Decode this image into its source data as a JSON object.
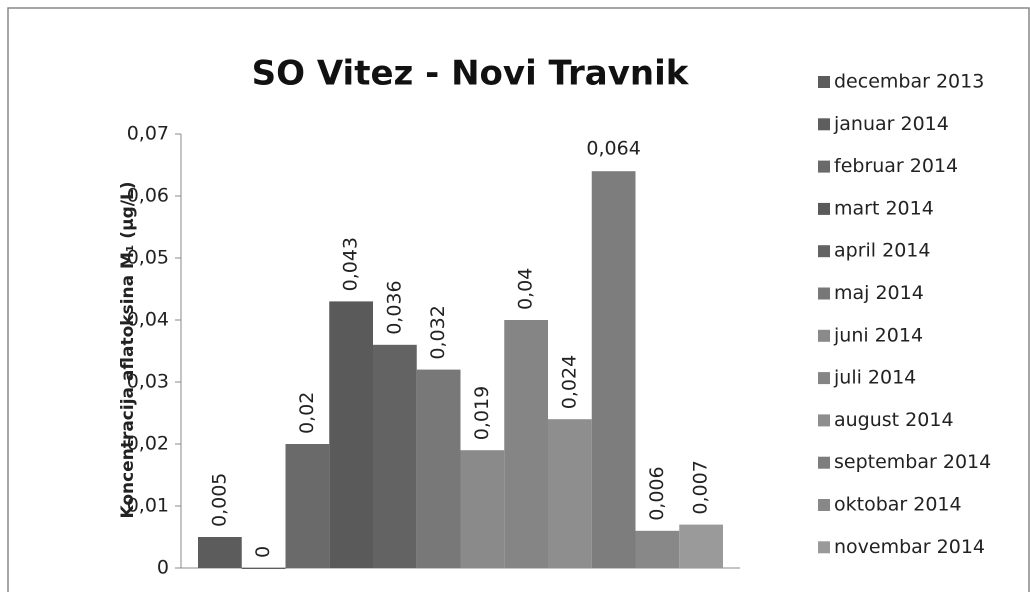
{
  "chart_data": {
    "type": "bar",
    "title": "SO Vitez - Novi Travnik",
    "y_label": "Koncentracija aflatoksina M₁ (µg/L)",
    "ylim": [
      0,
      0.07
    ],
    "yticks": [
      0,
      {
        "value": 0.01,
        "label": "0,01"
      },
      {
        "value": 0.02,
        "label": "0,02"
      },
      {
        "value": 0.03,
        "label": "0,03"
      },
      {
        "value": 0.04,
        "label": "0,04"
      },
      {
        "value": 0.05,
        "label": "0,05"
      },
      {
        "value": 0.06,
        "label": "0,06"
      },
      {
        "value": 0.07,
        "label": "0,07"
      }
    ],
    "legend": "right",
    "series": [
      {
        "name": "decembar 2013",
        "color": "#5c5c5c",
        "values": [
          0.005
        ],
        "value_labels": [
          "0,005"
        ]
      },
      {
        "name": "januar 2014",
        "color": "#5e5e5e",
        "values": [
          0
        ],
        "value_labels": [
          "0"
        ]
      },
      {
        "name": "februar 2014",
        "color": "#6a6a6a",
        "values": [
          0.02
        ],
        "value_labels": [
          "0,02"
        ]
      },
      {
        "name": "mart 2014",
        "color": "#5a5a5a",
        "values": [
          0.043
        ],
        "value_labels": [
          "0,043"
        ]
      },
      {
        "name": "april 2014",
        "color": "#636363",
        "values": [
          0.036
        ],
        "value_labels": [
          "0,036"
        ]
      },
      {
        "name": "maj 2014",
        "color": "#787878",
        "values": [
          0.032
        ],
        "value_labels": [
          "0,032"
        ]
      },
      {
        "name": "juni 2014",
        "color": "#8a8a8a",
        "values": [
          0.019
        ],
        "value_labels": [
          "0,019"
        ]
      },
      {
        "name": "juli 2014",
        "color": "#858585",
        "values": [
          0.04
        ],
        "value_labels": [
          "0,04"
        ]
      },
      {
        "name": "august 2014",
        "color": "#8e8e8e",
        "values": [
          0.024
        ],
        "value_labels": [
          "0,024"
        ]
      },
      {
        "name": "septembar 2014",
        "color": "#7d7d7d",
        "values": [
          0.064
        ],
        "value_labels": [
          "0,064"
        ]
      },
      {
        "name": "oktobar 2014",
        "color": "#888888",
        "values": [
          0.006
        ],
        "value_labels": [
          "0,006"
        ]
      },
      {
        "name": "novembar 2014",
        "color": "#9a9a9a",
        "values": [
          0.007
        ],
        "value_labels": [
          "0,007"
        ]
      }
    ]
  }
}
